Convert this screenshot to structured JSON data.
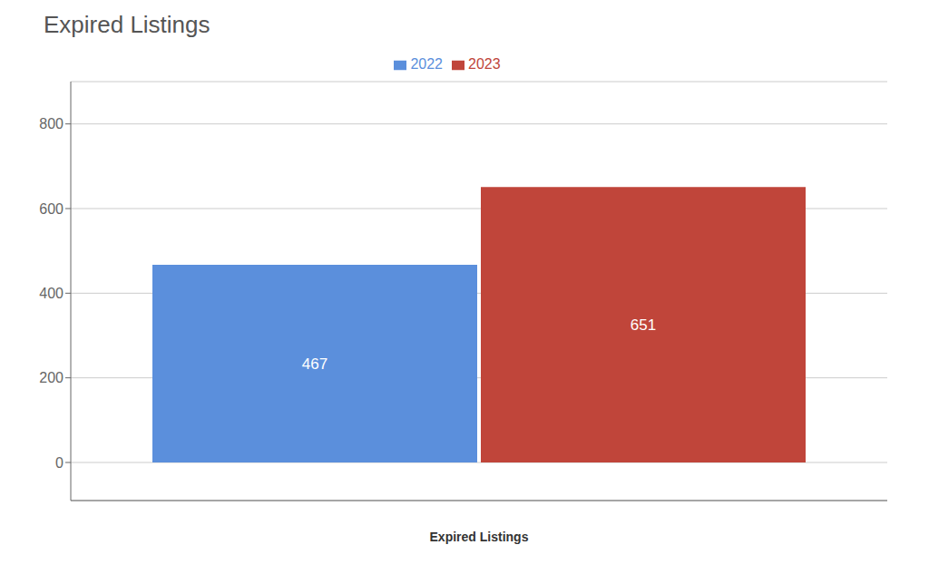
{
  "chart_data": {
    "type": "bar",
    "title": "Expired Listings",
    "xlabel": "Expired Listings",
    "categories": [
      null
    ],
    "series": [
      {
        "name": "2022",
        "color": "#5b8fdc",
        "values": [
          467
        ]
      },
      {
        "name": "2023",
        "color": "#c0453a",
        "values": [
          651
        ]
      }
    ],
    "ylim": [
      -90,
      900
    ],
    "yticks": [
      0,
      200,
      400,
      600,
      800
    ],
    "grid": true,
    "legend": "top",
    "data_labels": true,
    "tick_labels": "y"
  }
}
